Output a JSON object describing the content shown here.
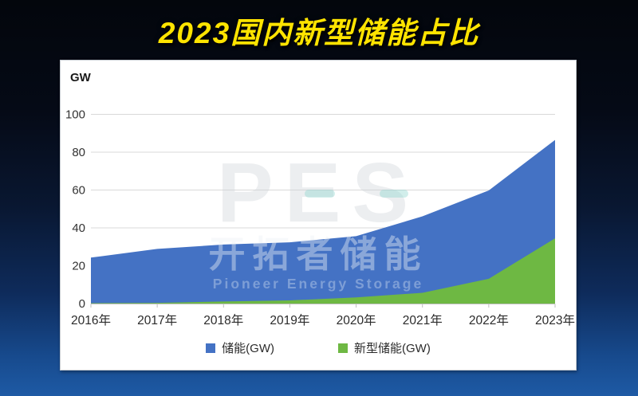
{
  "title": "2023国内新型储能占比",
  "colors": {
    "title_yellow": "#ffe400",
    "bg_top": "#03060c",
    "bg_bottom": "#1e5aa5",
    "card_bg": "#ffffff",
    "gridline": "#d9d9d9",
    "axis": "#bfbfbf"
  },
  "watermark": {
    "logo": "PES",
    "cn": "开拓者储能",
    "en": "Pioneer Energy Storage"
  },
  "chart_data": {
    "type": "area",
    "unit_label": "GW",
    "categories": [
      "2016年",
      "2017年",
      "2018年",
      "2019年",
      "2020年",
      "2021年",
      "2022年",
      "2023年"
    ],
    "series": [
      {
        "name": "储能(GW)",
        "color": "#4472C4",
        "values": [
          24.3,
          28.9,
          31.2,
          32.4,
          35.6,
          46.1,
          59.8,
          86.5
        ]
      },
      {
        "name": "新型储能(GW)",
        "color": "#6EB843",
        "values": [
          0.2,
          0.4,
          1.1,
          1.7,
          3.3,
          5.7,
          13.1,
          34.5
        ]
      }
    ],
    "overlapping": true,
    "ylim": [
      0,
      100
    ],
    "yticks": [
      0,
      20,
      40,
      60,
      80,
      100
    ],
    "grid": true,
    "legend_position": "bottom"
  }
}
